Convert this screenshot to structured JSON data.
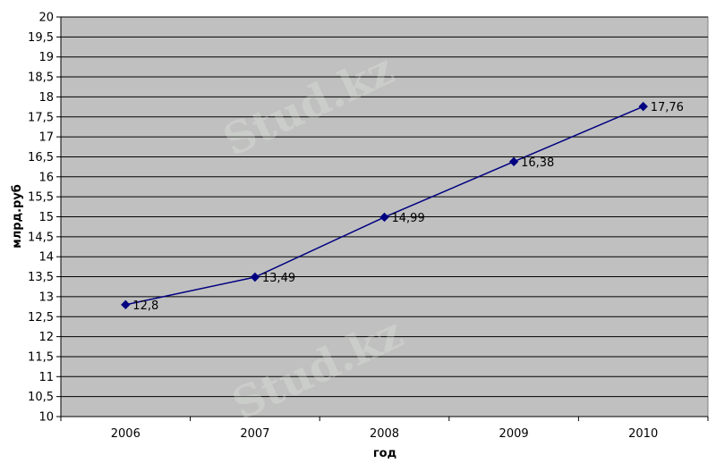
{
  "chart_data": {
    "type": "line",
    "categories": [
      "2006",
      "2007",
      "2008",
      "2009",
      "2010"
    ],
    "series": [
      {
        "values": [
          12.8,
          13.49,
          14.99,
          16.38,
          17.76
        ],
        "data_labels": [
          "12,8",
          "13,49",
          "14,99",
          "16,38",
          "17,76"
        ],
        "color": "#000080",
        "marker": "diamond"
      }
    ],
    "xlabel": "год",
    "ylabel": "млрд.руб",
    "ylim": [
      10,
      20
    ],
    "ytick_step": 0.5,
    "ytick_labels": [
      "10",
      "10,5",
      "11",
      "11,5",
      "12",
      "12,5",
      "13",
      "13,5",
      "14",
      "14,5",
      "15",
      "15,5",
      "16",
      "16,5",
      "17",
      "17,5",
      "18",
      "18,5",
      "19",
      "19,5",
      "20"
    ],
    "grid": true,
    "plot_background": "#c0c0c0",
    "legend": "none"
  },
  "watermark": {
    "text": "Stud.kz"
  }
}
